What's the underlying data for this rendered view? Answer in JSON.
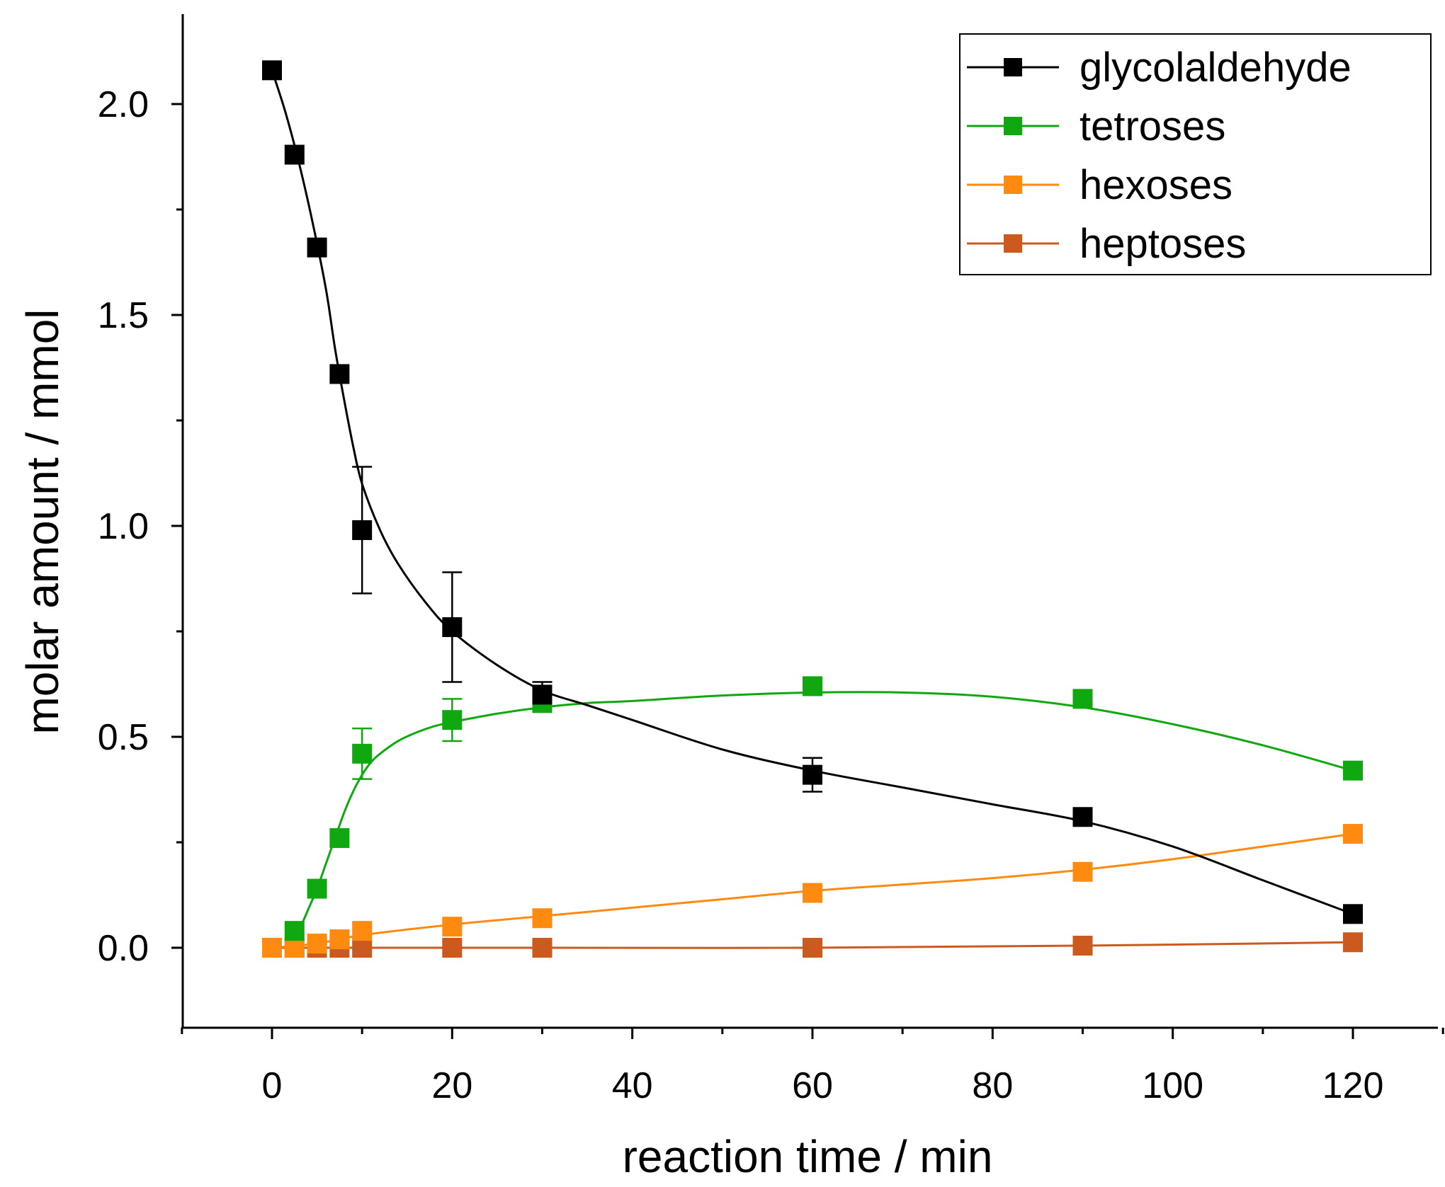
{
  "chart_data": {
    "type": "line",
    "xlabel": "reaction time / min",
    "ylabel": "molar amount / mmol",
    "xlim": [
      -10,
      130
    ],
    "ylim": [
      -0.2,
      2.2
    ],
    "xticks": [
      0,
      20,
      40,
      60,
      80,
      100,
      120
    ],
    "xtick_labels": [
      "0",
      "20",
      "40",
      "60",
      "80",
      "100",
      "120"
    ],
    "yticks": [
      0.0,
      0.5,
      1.0,
      1.5,
      2.0
    ],
    "ytick_labels": [
      "0.0",
      "0.5",
      "1.0",
      "1.5",
      "2.0"
    ],
    "legend_position": "top-right",
    "series": [
      {
        "name": "glycolaldehyde",
        "color": "#000000",
        "x": [
          0,
          2.5,
          5,
          7.5,
          10,
          20,
          30,
          60,
          90,
          120
        ],
        "y": [
          2.08,
          1.88,
          1.66,
          1.36,
          0.99,
          0.76,
          0.6,
          0.41,
          0.31,
          0.08
        ],
        "error": [
          0,
          0,
          0,
          0,
          0.15,
          0.13,
          0.03,
          0.04,
          0.02,
          0
        ],
        "curve_x": [
          0,
          1.5,
          3,
          4.5,
          6,
          7,
          8,
          9,
          10,
          12,
          14,
          17,
          20,
          25,
          30,
          35,
          40,
          50,
          60,
          70,
          80,
          90,
          100,
          110,
          120
        ],
        "curve_y": [
          2.08,
          1.98,
          1.86,
          1.72,
          1.56,
          1.42,
          1.3,
          1.19,
          1.1,
          0.99,
          0.91,
          0.82,
          0.75,
          0.67,
          0.61,
          0.575,
          0.54,
          0.47,
          0.42,
          0.38,
          0.34,
          0.3,
          0.24,
          0.16,
          0.08
        ]
      },
      {
        "name": "tetroses",
        "color": "#10a810",
        "x": [
          2.5,
          5,
          7.5,
          10,
          20,
          30,
          60,
          90,
          120
        ],
        "y": [
          0.04,
          0.14,
          0.26,
          0.46,
          0.54,
          0.58,
          0.62,
          0.59,
          0.42
        ],
        "error": [
          0,
          0,
          0,
          0.06,
          0.05,
          0.02,
          0,
          0,
          0
        ],
        "curve_x": [
          2.2,
          3,
          4,
          5,
          6,
          7,
          8,
          9,
          10,
          11,
          12,
          14,
          16,
          18,
          20,
          25,
          30,
          35,
          40,
          50,
          60,
          70,
          80,
          90,
          100,
          110,
          120
        ],
        "curve_y": [
          0.0,
          0.04,
          0.09,
          0.14,
          0.2,
          0.26,
          0.32,
          0.37,
          0.41,
          0.44,
          0.46,
          0.49,
          0.51,
          0.525,
          0.535,
          0.555,
          0.57,
          0.58,
          0.585,
          0.598,
          0.605,
          0.605,
          0.595,
          0.57,
          0.53,
          0.48,
          0.42
        ]
      },
      {
        "name": "hexoses",
        "color": "#ff8a10",
        "x": [
          0,
          2.5,
          5,
          7.5,
          10,
          20,
          30,
          60,
          90,
          120
        ],
        "y": [
          0.0,
          0.0,
          0.01,
          0.02,
          0.04,
          0.05,
          0.07,
          0.13,
          0.18,
          0.27
        ],
        "error": [
          0,
          0,
          0,
          0,
          0,
          0,
          0,
          0,
          0,
          0
        ],
        "curve_x": [
          0,
          5,
          10,
          20,
          30,
          40,
          50,
          60,
          70,
          80,
          90,
          100,
          110,
          120
        ],
        "curve_y": [
          0.0,
          0.01,
          0.03,
          0.055,
          0.075,
          0.095,
          0.115,
          0.135,
          0.15,
          0.165,
          0.185,
          0.21,
          0.24,
          0.27
        ]
      },
      {
        "name": "heptoses",
        "color": "#cc5a1e",
        "x": [
          0,
          2.5,
          5,
          7.5,
          10,
          20,
          30,
          60,
          90,
          120
        ],
        "y": [
          0.0,
          0.0,
          0.0,
          0.0,
          0.0,
          0.0,
          0.0,
          0.0,
          0.005,
          0.013
        ],
        "error": [
          0,
          0,
          0,
          0,
          0,
          0,
          0,
          0,
          0,
          0
        ],
        "curve_x": [
          0,
          30,
          60,
          90,
          120
        ],
        "curve_y": [
          0.0,
          0.0,
          0.0,
          0.005,
          0.013
        ]
      }
    ]
  }
}
